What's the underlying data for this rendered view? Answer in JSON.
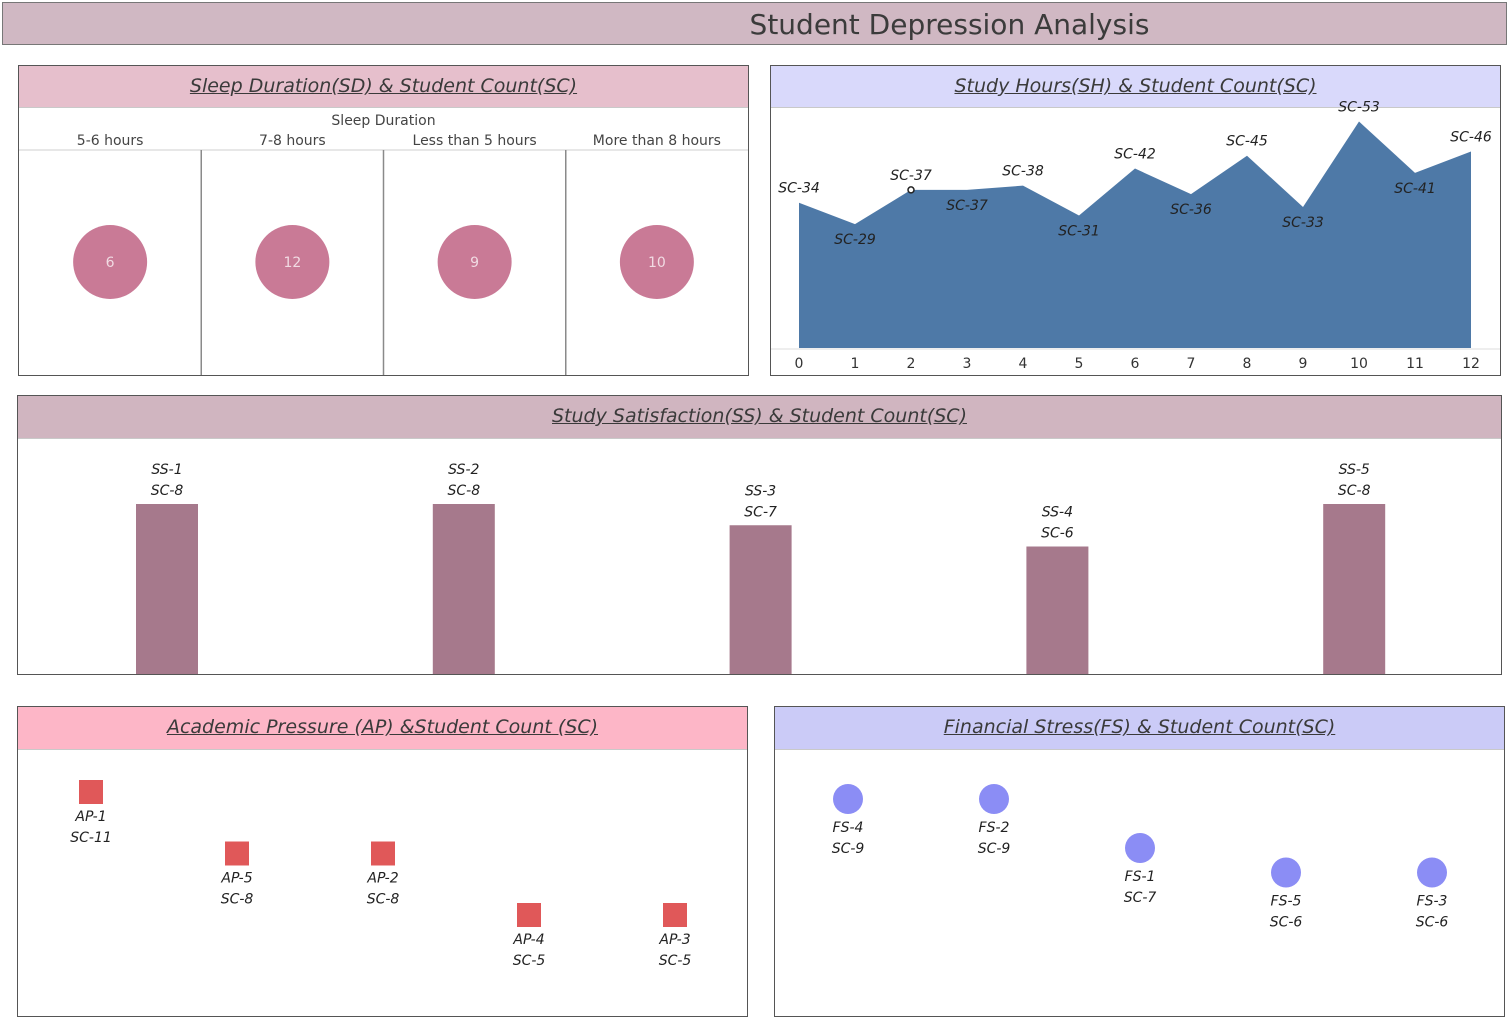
{
  "dashboard": {
    "title": "Student Depression Analysis"
  },
  "colors": {
    "title_bg": "#d0b8c3",
    "sleep_head": "#e6bfcc",
    "study_hours_head": "#d9d9fb",
    "satisfaction_head": "#d0b5c0",
    "academic_head": "#fdb6c7",
    "financial_head": "#cbcbf7",
    "sleep_circle": "#c97a96",
    "area_fill": "#4e79a7",
    "bar_fill": "#a6798c",
    "square_fill": "#e05859",
    "dot_fill": "#8b8df5"
  },
  "panels": {
    "sleep": {
      "title": "Sleep Duration(SD) & Student Count(SC)"
    },
    "study_hours": {
      "title": "Study Hours(SH) & Student Count(SC)"
    },
    "satisfaction": {
      "title": "Study Satisfaction(SS) & Student Count(SC)"
    },
    "academic": {
      "title": "Academic Pressure (AP) &Student Count (SC)"
    },
    "financial": {
      "title": "Financial Stress(FS) & Student Count(SC)"
    }
  },
  "chart_data": [
    {
      "id": "sleep",
      "type": "scatter",
      "header_label": "Sleep Duration",
      "categories": [
        "5-6 hours",
        "7-8 hours",
        "Less than 5 hours",
        "More than 8 hours"
      ],
      "values": [
        6,
        12,
        9,
        10
      ]
    },
    {
      "id": "study_hours",
      "type": "area",
      "x": [
        0,
        1,
        2,
        3,
        4,
        5,
        6,
        7,
        8,
        9,
        10,
        11,
        12
      ],
      "values": [
        34,
        29,
        37,
        37,
        38,
        31,
        42,
        36,
        45,
        33,
        53,
        41,
        46
      ],
      "labels": [
        "SC-34",
        "SC-29",
        "SC-37",
        "SC-37",
        "SC-38",
        "SC-31",
        "SC-42",
        "SC-36",
        "SC-45",
        "SC-33",
        "SC-53",
        "SC-41",
        "SC-46"
      ],
      "ylim": [
        0,
        55
      ]
    },
    {
      "id": "satisfaction",
      "type": "bar",
      "categories": [
        "SS-1",
        "SS-2",
        "SS-3",
        "SS-4",
        "SS-5"
      ],
      "values": [
        8,
        8,
        7,
        6,
        8
      ],
      "value_labels": [
        "SC-8",
        "SC-8",
        "SC-7",
        "SC-6",
        "SC-8"
      ],
      "ylim": [
        0,
        10
      ]
    },
    {
      "id": "academic",
      "type": "scatter",
      "categories": [
        "AP-1",
        "AP-5",
        "AP-2",
        "AP-4",
        "AP-3"
      ],
      "values": [
        11,
        8,
        8,
        5,
        5
      ],
      "value_labels": [
        "SC-11",
        "SC-8",
        "SC-8",
        "SC-5",
        "SC-5"
      ]
    },
    {
      "id": "financial",
      "type": "scatter",
      "categories": [
        "FS-4",
        "FS-2",
        "FS-1",
        "FS-5",
        "FS-3"
      ],
      "values": [
        9,
        9,
        7,
        6,
        6
      ],
      "value_labels": [
        "SC-9",
        "SC-9",
        "SC-7",
        "SC-6",
        "SC-6"
      ]
    }
  ]
}
